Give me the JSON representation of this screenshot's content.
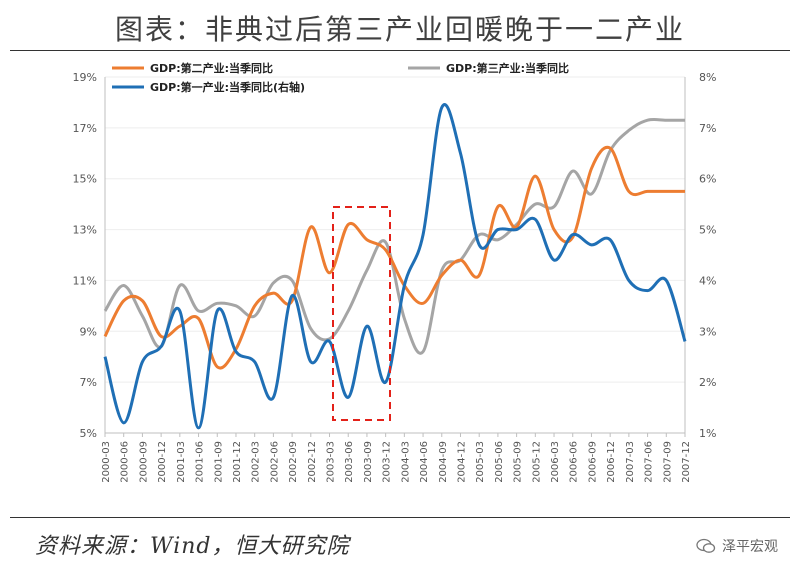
{
  "title": "图表：非典过后第三产业回暖晚于一二产业",
  "source": "资料来源：Wind，恒大研究院",
  "watermark": "泽平宏观",
  "chart_data": {
    "type": "line",
    "x": [
      "2000-03",
      "2000-06",
      "2000-09",
      "2000-12",
      "2001-03",
      "2001-06",
      "2001-09",
      "2001-12",
      "2002-03",
      "2002-06",
      "2002-09",
      "2002-12",
      "2003-03",
      "2003-06",
      "2003-09",
      "2003-12",
      "2004-03",
      "2004-06",
      "2004-09",
      "2004-12",
      "2005-03",
      "2005-06",
      "2005-09",
      "2005-12",
      "2006-03",
      "2006-06",
      "2006-09",
      "2006-12",
      "2007-03",
      "2007-06",
      "2007-09",
      "2007-12"
    ],
    "y_left_ticks": [
      "19%",
      "17%",
      "15%",
      "13%",
      "11%",
      "9%",
      "7%",
      "5%"
    ],
    "y_right_ticks": [
      "8%",
      "7%",
      "6%",
      "5%",
      "4%",
      "3%",
      "2%",
      "1%"
    ],
    "ylim_left": [
      5,
      19
    ],
    "ylim_right": [
      1,
      8
    ],
    "series": [
      {
        "name": "GDP:第二产业:当季同比",
        "axis": "left",
        "color": "#ED7D31",
        "values": [
          8.8,
          10.2,
          10.2,
          8.8,
          9.2,
          9.5,
          7.6,
          8.3,
          10.0,
          10.5,
          10.2,
          13.1,
          11.3,
          13.2,
          12.6,
          12.2,
          10.8,
          10.1,
          11.2,
          11.8,
          11.2,
          13.9,
          13.1,
          15.1,
          13.0,
          12.7,
          15.4,
          16.2,
          14.5,
          14.5,
          14.5,
          14.5
        ]
      },
      {
        "name": "GDP:第三产业:当季同比",
        "axis": "left",
        "color": "#A5A5A5",
        "values": [
          9.8,
          10.8,
          9.6,
          8.4,
          10.8,
          9.8,
          10.1,
          10.0,
          9.6,
          10.9,
          11.0,
          9.1,
          8.7,
          9.8,
          11.4,
          12.5,
          9.5,
          8.2,
          11.4,
          11.8,
          12.8,
          12.6,
          13.2,
          14.0,
          13.9,
          15.3,
          14.4,
          16.1,
          16.9,
          17.3,
          17.3,
          17.3
        ]
      },
      {
        "name": "GDP:第一产业:当季同比(右轴)",
        "axis": "right",
        "color": "#1F6FB5",
        "values": [
          2.5,
          1.2,
          2.4,
          2.7,
          3.4,
          1.1,
          3.4,
          2.6,
          2.4,
          1.7,
          3.7,
          2.4,
          2.8,
          1.7,
          3.1,
          2.0,
          3.9,
          4.9,
          7.4,
          6.5,
          4.7,
          5.0,
          5.0,
          5.2,
          4.4,
          4.9,
          4.7,
          4.8,
          4.0,
          3.8,
          4.0,
          2.8
        ]
      }
    ],
    "legend_position": "top-left",
    "annotation": "dashed red box around 2003-03 to 2003-12"
  }
}
